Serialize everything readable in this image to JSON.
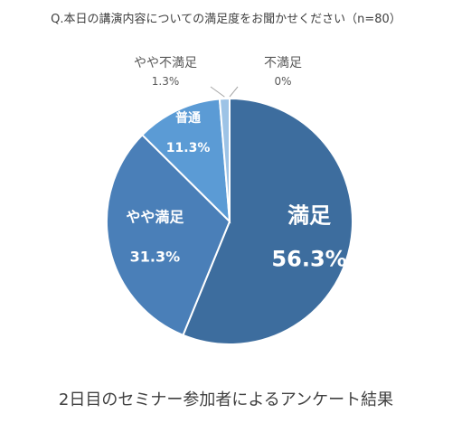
{
  "chart_data": {
    "type": "pie",
    "title": "Q.本日の講演内容についての満足度をお聞かせください（n=80）",
    "caption": "2日目のセミナー参加者によるアンケート結果",
    "slices": [
      {
        "label": "満足",
        "value": 56.3,
        "value_text": "56.3%",
        "color": "#3d6d9e"
      },
      {
        "label": "やや満足",
        "value": 31.3,
        "value_text": "31.3%",
        "color": "#4a7fb8"
      },
      {
        "label": "普通",
        "value": 11.3,
        "value_text": "11.3%",
        "color": "#5b9bd5"
      },
      {
        "label": "やや不満足",
        "value": 1.3,
        "value_text": "1.3%",
        "color": "#9dc3e6"
      },
      {
        "label": "不満足",
        "value": 0,
        "value_text": "0%",
        "color": "#bdd7ee"
      }
    ]
  }
}
